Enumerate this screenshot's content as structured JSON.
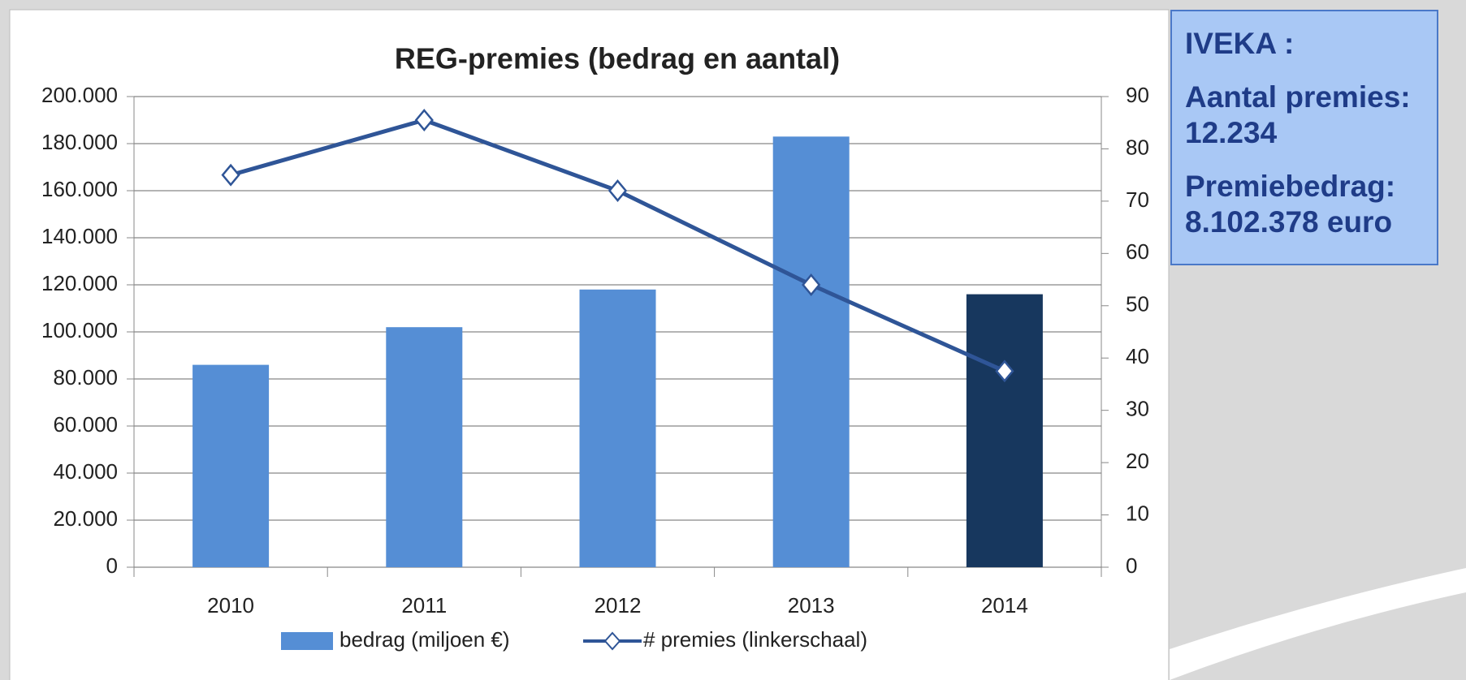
{
  "chart_data": {
    "type": "bar_line",
    "title": "REG-premies (bedrag en aantal)",
    "categories": [
      "2010",
      "2011",
      "2012",
      "2013",
      "2014"
    ],
    "series": [
      {
        "name": "bedrag (miljoen €)",
        "type": "bar",
        "color": "#558ed5",
        "colors": [
          "#558ed5",
          "#558ed5",
          "#558ed5",
          "#558ed5",
          "#17375e"
        ],
        "values": [
          86000,
          102000,
          118000,
          183000,
          116000
        ]
      },
      {
        "name": "# premies (linkerschaal)",
        "type": "line",
        "axis": "y2",
        "color": "#2f5597",
        "values": [
          75,
          85.5,
          72,
          54,
          37.5
        ]
      }
    ],
    "ylim": [
      0,
      200000
    ],
    "yticks": [
      {
        "value": 0,
        "label": "0"
      },
      {
        "value": 20000,
        "label": "20.000"
      },
      {
        "value": 40000,
        "label": "40.000"
      },
      {
        "value": 60000,
        "label": "60.000"
      },
      {
        "value": 80000,
        "label": "80.000"
      },
      {
        "value": 100000,
        "label": "100.000"
      },
      {
        "value": 120000,
        "label": "120.000"
      },
      {
        "value": 140000,
        "label": "140.000"
      },
      {
        "value": 160000,
        "label": "160.000"
      },
      {
        "value": 180000,
        "label": "180.000"
      },
      {
        "value": 200000,
        "label": "200.000"
      }
    ],
    "y2lim": [
      0,
      90
    ],
    "y2ticks": [
      0,
      10,
      20,
      30,
      40,
      50,
      60,
      70,
      80,
      90
    ],
    "grid": true,
    "legend": "bottom",
    "annotations": [
      "IVEKA :",
      "Aantal premies: 12.234",
      "Premiebedrag: 8.102.378 euro"
    ]
  }
}
